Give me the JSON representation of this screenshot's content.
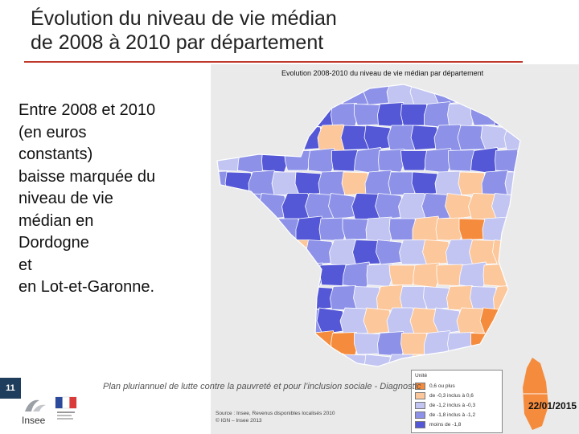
{
  "slide": {
    "title": "Évolution du niveau de vie médian\nde 2008 à 2010 par département",
    "body_text": "Entre 2008 et 2010\n(en euros\nconstants)\nbaisse marquée du\nniveau de vie\nmédian en\nDordogne\net\nen Lot-et-Garonne.",
    "slide_number": "11",
    "footer_text": "Plan pluriannuel de lutte contre la pauvreté et pour l’inclusion sociale - Diagnostic",
    "date": "22/01/2015",
    "logo_label": "Insee",
    "accent_color": "#c0392b"
  },
  "map": {
    "title": "Evolution 2008-2010 du niveau de vie médian par département",
    "legend": {
      "title": "Unité",
      "items": [
        {
          "label": "0,6 ou plus",
          "color": "#f58b3c"
        },
        {
          "label": "de -0,3 inclus à 0,6",
          "color": "#fcc79b"
        },
        {
          "label": "de -1,2 inclus à -0,3",
          "color": "#c2c5f2"
        },
        {
          "label": "de -1,8 inclus à -1,2",
          "color": "#8d92e8"
        },
        {
          "label": "moins de -1,8",
          "color": "#5458d6"
        }
      ]
    },
    "source": "Source : Insee, Revenus disponibles localisés 2010\n© IGN – Insee 2013",
    "sea_color": "#e9eae9",
    "border_color": "#ffffff"
  }
}
